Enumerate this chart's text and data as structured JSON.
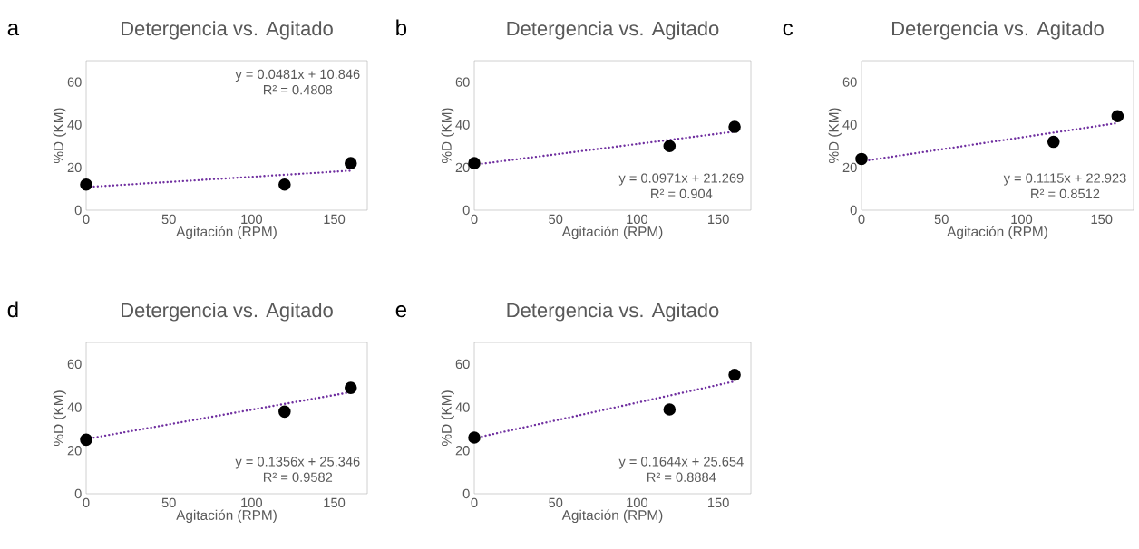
{
  "chart_data": [
    {
      "type": "scatter",
      "title": "Detergencia vs. Agitado",
      "xlabel": "Agitación (RPM)",
      "ylabel": "%D (KM)",
      "annotations": [
        "a",
        "y = 0.0481x + 10.846",
        "R² = 0.4808"
      ],
      "xlim": [
        0,
        170
      ],
      "ylim": [
        0,
        70
      ],
      "xticks": [
        0,
        50,
        100,
        150
      ],
      "yticks": [
        0,
        20,
        40,
        60
      ],
      "series": [
        {
          "color": "#000000",
          "marker": "circle",
          "x": [
            0,
            120,
            160
          ],
          "values": [
            12,
            12,
            22
          ]
        },
        {
          "type": "line",
          "color": "#7030a0",
          "x": [
            0,
            160
          ],
          "values": [
            10.8,
            18.5
          ],
          "line_style": "dotted",
          "marker": "none"
        }
      ]
    },
    {
      "type": "scatter",
      "title": "Detergencia vs. Agitado",
      "xlabel": "Agitación (RPM)",
      "ylabel": "%D (KM)",
      "annotations": [
        "b",
        "y = 0.0971x + 21.269",
        "R² = 0.904"
      ],
      "xlim": [
        0,
        170
      ],
      "ylim": [
        0,
        70
      ],
      "xticks": [
        0,
        50,
        100,
        150
      ],
      "yticks": [
        0,
        20,
        40,
        60
      ],
      "series": [
        {
          "color": "#000000",
          "marker": "circle",
          "x": [
            0,
            120,
            160
          ],
          "values": [
            22,
            30,
            39
          ]
        },
        {
          "type": "line",
          "color": "#7030a0",
          "x": [
            0,
            160
          ],
          "values": [
            21.3,
            36.8
          ],
          "line_style": "dotted",
          "marker": "none"
        }
      ]
    },
    {
      "type": "scatter",
      "title": "Detergencia vs. Agitado",
      "xlabel": "Agitación (RPM)",
      "ylabel": "%D (KM)",
      "annotations": [
        "c",
        "y = 0.1115x + 22.923",
        "R² = 0.8512"
      ],
      "xlim": [
        0,
        170
      ],
      "ylim": [
        0,
        70
      ],
      "xticks": [
        0,
        50,
        100,
        150
      ],
      "yticks": [
        0,
        20,
        40,
        60
      ],
      "series": [
        {
          "color": "#000000",
          "marker": "circle",
          "x": [
            0,
            120,
            160
          ],
          "values": [
            24,
            32,
            44
          ]
        },
        {
          "type": "line",
          "color": "#7030a0",
          "x": [
            0,
            160
          ],
          "values": [
            22.9,
            40.8
          ],
          "line_style": "dotted",
          "marker": "none"
        }
      ]
    },
    {
      "type": "scatter",
      "title": "Detergencia vs. Agitado",
      "xlabel": "Agitación (RPM)",
      "ylabel": "%D (KM)",
      "annotations": [
        "d",
        "y = 0.1356x + 25.346",
        "R² = 0.9582"
      ],
      "xlim": [
        0,
        170
      ],
      "ylim": [
        0,
        70
      ],
      "xticks": [
        0,
        50,
        100,
        150
      ],
      "yticks": [
        0,
        20,
        40,
        60
      ],
      "series": [
        {
          "color": "#000000",
          "marker": "circle",
          "x": [
            0,
            120,
            160
          ],
          "values": [
            25,
            38,
            49
          ]
        },
        {
          "type": "line",
          "color": "#7030a0",
          "x": [
            0,
            160
          ],
          "values": [
            25.3,
            47.0
          ],
          "line_style": "dotted",
          "marker": "none"
        }
      ]
    },
    {
      "type": "scatter",
      "title": "Detergencia vs. Agitado",
      "xlabel": "Agitación (RPM)",
      "ylabel": "%D (KM)",
      "annotations": [
        "e",
        "y = 0.1644x + 25.654",
        "R² = 0.8884"
      ],
      "xlim": [
        0,
        170
      ],
      "ylim": [
        0,
        70
      ],
      "xticks": [
        0,
        50,
        100,
        150
      ],
      "yticks": [
        0,
        20,
        40,
        60
      ],
      "series": [
        {
          "color": "#000000",
          "marker": "circle",
          "x": [
            0,
            120,
            160
          ],
          "values": [
            26,
            39,
            55
          ]
        },
        {
          "type": "line",
          "color": "#7030a0",
          "x": [
            0,
            160
          ],
          "values": [
            25.7,
            52.0
          ],
          "line_style": "dotted",
          "marker": "none"
        }
      ]
    }
  ]
}
